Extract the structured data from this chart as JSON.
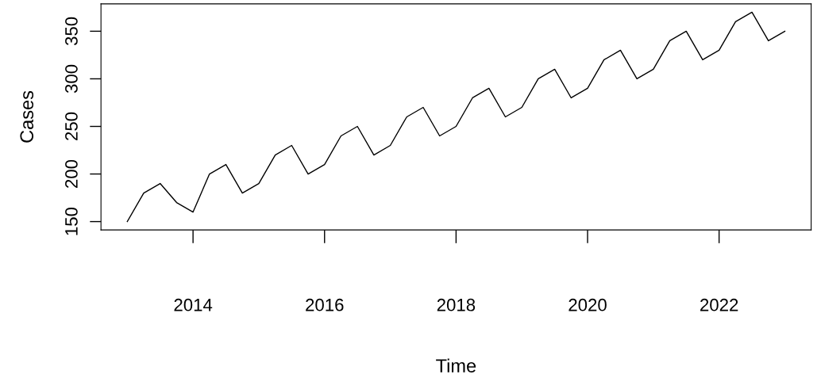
{
  "chart_data": {
    "type": "line",
    "xlabel": "Time",
    "ylabel": "Cases",
    "x": [
      2013,
      2013.25,
      2013.5,
      2013.75,
      2014,
      2014.25,
      2014.5,
      2014.75,
      2015,
      2015.25,
      2015.5,
      2015.75,
      2016,
      2016.25,
      2016.5,
      2016.75,
      2017,
      2017.25,
      2017.5,
      2017.75,
      2018,
      2018.25,
      2018.5,
      2018.75,
      2019,
      2019.25,
      2019.5,
      2019.75,
      2020,
      2020.25,
      2020.5,
      2020.75,
      2021,
      2021.25,
      2021.5,
      2021.75,
      2022,
      2022.25,
      2022.5,
      2022.75,
      2023
    ],
    "series": [
      {
        "color": "#000000",
        "values": [
          150,
          180,
          190,
          170,
          160,
          200,
          210,
          180,
          190,
          220,
          230,
          200,
          210,
          240,
          250,
          220,
          230,
          260,
          270,
          240,
          250,
          280,
          290,
          260,
          270,
          300,
          310,
          280,
          290,
          320,
          330,
          300,
          310,
          340,
          350,
          320,
          330,
          360,
          370,
          340,
          350
        ]
      }
    ],
    "xlim": [
      2012.6,
      2023.4
    ],
    "ylim": [
      141.2,
      378.8
    ],
    "xticks": [
      2014,
      2016,
      2018,
      2020,
      2022
    ],
    "yticks": [
      150,
      200,
      250,
      300,
      350
    ],
    "grid": false,
    "legend": false,
    "marker": "none",
    "line_style": "solid"
  }
}
